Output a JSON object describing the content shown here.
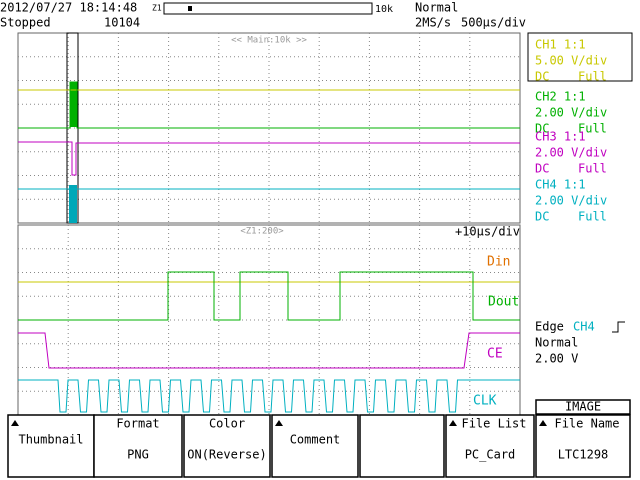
{
  "header": {
    "datetime": "2012/07/27 18:14:48",
    "zoom_marker": "Z1",
    "record_length": "10k",
    "trigger_mode": "Normal",
    "status": "Stopped",
    "acquisition_count": "10104",
    "sample_rate": "2MS/s",
    "timebase": "500µs/div"
  },
  "main_window": {
    "label": "<< Main:10k >>"
  },
  "zoom_window": {
    "label": "<Z1:200>",
    "timebase": "+10µs/div",
    "traces": [
      "Din",
      "Dout",
      "CE",
      "CLK"
    ]
  },
  "channels": [
    {
      "name": "CH1 1:1",
      "scale": "5.00 V/div",
      "coupling": "DC",
      "bandwidth": "Full"
    },
    {
      "name": "CH2 1:1",
      "scale": "2.00 V/div",
      "coupling": "DC",
      "bandwidth": "Full"
    },
    {
      "name": "CH3 1:1",
      "scale": "2.00 V/div",
      "coupling": "DC",
      "bandwidth": "Full"
    },
    {
      "name": "CH4 1:1",
      "scale": "2.00 V/div",
      "coupling": "DC",
      "bandwidth": "Full"
    }
  ],
  "trigger": {
    "type": "Edge",
    "source": "CH4",
    "mode": "Normal",
    "level": "2.00 V"
  },
  "softkeys": [
    {
      "label": "Thumbnail"
    },
    {
      "label": "Format",
      "value": "PNG"
    },
    {
      "label": "Color",
      "value": "ON(Reverse)"
    },
    {
      "label": "Comment"
    },
    {
      "label": "File List",
      "value": "PC_Card"
    },
    {
      "header": "IMAGE",
      "label": "File Name",
      "value": "LTC1298"
    }
  ]
}
